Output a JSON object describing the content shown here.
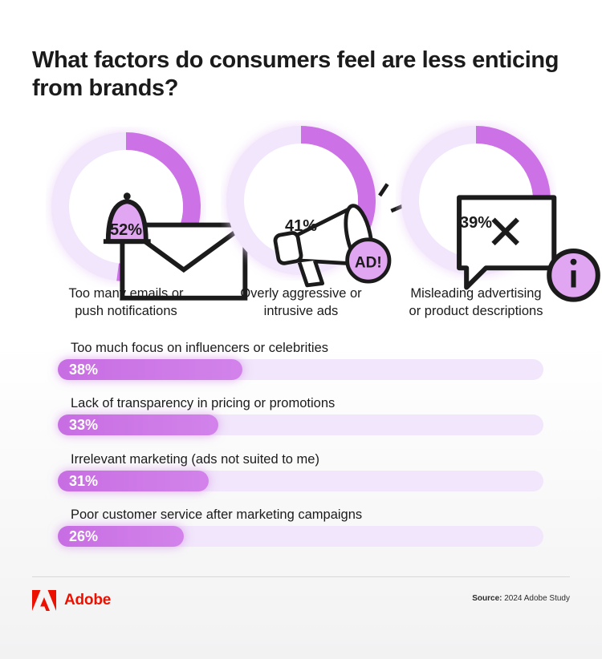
{
  "title": {
    "line1": "What factors do consumers feel are less enticing",
    "line2": "from brands?"
  },
  "colors": {
    "accent": "#cc72e6",
    "track": "#f1e6fb",
    "brand": "#eb1000",
    "text": "#1b1b1b"
  },
  "chart_data": [
    {
      "type": "pie",
      "title": "",
      "categories": [
        "Too many emails or push notifications",
        "Overly aggressive or intrusive ads",
        "Misleading advertising or product descriptions"
      ],
      "values": [
        52,
        41,
        39
      ],
      "unit": "%",
      "items": [
        {
          "label_line1": "Too many emails or",
          "label_line2": "push notifications",
          "value": 52,
          "value_text": "52%",
          "icon": "email-bell-icon"
        },
        {
          "label_line1": "Overly aggressive or",
          "label_line2": "intrusive ads",
          "value": 41,
          "value_text": "41%",
          "icon": "megaphone-ad-icon"
        },
        {
          "label_line1": "Misleading advertising",
          "label_line2": "or product descriptions",
          "value": 39,
          "value_text": "39%",
          "icon": "message-alert-icon"
        }
      ],
      "megaphone_badge": "AD!"
    },
    {
      "type": "bar",
      "orientation": "horizontal",
      "categories": [
        "Too much focus on influencers or celebrities",
        "Lack of transparency in pricing or promotions",
        "Irrelevant marketing (ads not suited to me)",
        "Poor customer service after marketing campaigns"
      ],
      "values": [
        38,
        33,
        31,
        26
      ],
      "value_labels": [
        "38%",
        "33%",
        "31%",
        "26%"
      ],
      "xlim": [
        0,
        100
      ],
      "unit": "%"
    }
  ],
  "footer": {
    "brand": "Adobe",
    "logo": "adobe-logo-icon",
    "source_label": "Source:",
    "source_text": "2024 Adobe Study"
  }
}
